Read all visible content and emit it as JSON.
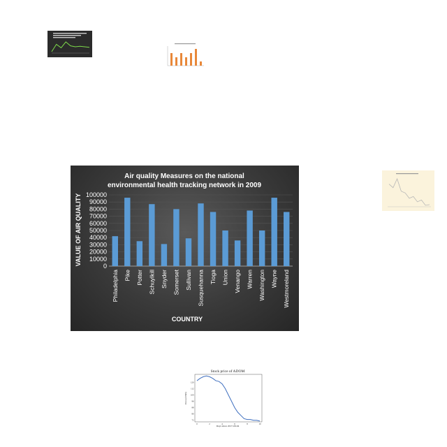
{
  "chart_data": [
    {
      "type": "bar",
      "title_line1": "Air quality Measures on the national",
      "title_line2": "environmental health tracking network in 2009",
      "xlabel": "COUNTRY",
      "ylabel": "VALUE OF  AIR QUALITY",
      "ylim": [
        0,
        100000
      ],
      "yticks": [
        "0",
        "10000",
        "20000",
        "30000",
        "40000",
        "50000",
        "60000",
        "70000",
        "80000",
        "90000",
        "100000"
      ],
      "categories": [
        "Philadelphia",
        "Pike",
        "Potter",
        "Schuylkill",
        "Snyder",
        "Somerset",
        "Sullivan",
        "Susquehanna",
        "Tioga",
        "Union",
        "Venango",
        "Warren",
        "Washington",
        "Wayne",
        "Westmoreland"
      ],
      "values": [
        42000,
        96000,
        35000,
        87000,
        31000,
        80000,
        39000,
        88000,
        76000,
        50000,
        36000,
        78000,
        50000,
        96000,
        76000
      ],
      "grid": true,
      "colors": {
        "bar": "#5b9bd5",
        "background": "#333333",
        "text": "#ffffff",
        "grid": "#555555"
      }
    },
    {
      "type": "line",
      "title": "Stock price of ADOM",
      "xlabel": "Days since 2017-09-04",
      "ylabel": "Price (USD)",
      "x": [
        0,
        1,
        2,
        3,
        4,
        5,
        6,
        7,
        8,
        9,
        10,
        11,
        12,
        13,
        14,
        15,
        16,
        17,
        18,
        19,
        20
      ],
      "values": [
        122,
        125,
        127,
        128,
        127,
        125,
        122,
        121,
        118,
        112,
        104,
        96,
        88,
        82,
        78,
        74,
        73,
        73,
        72,
        72,
        71
      ],
      "xticks": [
        "0",
        "2",
        "4",
        "6",
        "8",
        "10"
      ],
      "yticks": [
        "72",
        "80",
        "88",
        "96",
        "104",
        "112",
        "120"
      ],
      "ylim": [
        70,
        130
      ],
      "grid": false,
      "colors": {
        "line": "#3f6fbf"
      }
    }
  ],
  "thumbnails": {
    "dark": {
      "line": [
        40,
        55,
        48,
        60,
        52,
        50,
        51,
        50,
        49
      ],
      "colors": {
        "bg": "#2b2b2b",
        "line": "#7dd94a"
      }
    },
    "orange": {
      "values": [
        3,
        2,
        3,
        2,
        3,
        4,
        1
      ],
      "colors": {
        "bar": "#e8883a"
      }
    },
    "cream": {
      "line": [
        80,
        70,
        95,
        60,
        55,
        40,
        45,
        30,
        35,
        20,
        22
      ],
      "colors": {
        "bg": "#fbf3dc",
        "line": "#b7b7b7"
      }
    }
  }
}
